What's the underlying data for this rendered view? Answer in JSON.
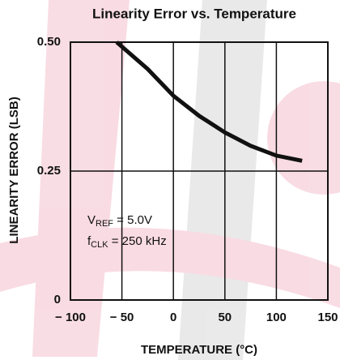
{
  "chart_data": {
    "type": "line",
    "title": "Linearity Error vs. Temperature",
    "x_label": "TEMPERATURE (°C)",
    "y_label": "LINEARITY ERROR (LSB)",
    "x": [
      -55,
      -25,
      0,
      25,
      50,
      75,
      100,
      125
    ],
    "series": [
      {
        "color": "#111111",
        "values": [
          0.5,
          0.448,
          0.396,
          0.357,
          0.325,
          0.299,
          0.28,
          0.27
        ]
      }
    ],
    "xlim": [
      -100,
      150
    ],
    "xticks": [
      {
        "value": -100,
        "label": "− 100"
      },
      {
        "value": -50,
        "label": "− 50"
      },
      0,
      50,
      100,
      150
    ],
    "ylim": [
      0,
      0.5
    ],
    "yticks": [
      0,
      0.25,
      {
        "value": 0.5,
        "label": "0.50"
      }
    ],
    "grid": true,
    "annotations": [
      [
        "V",
        "REF",
        " = 5.0V"
      ],
      [
        "f",
        "CLK",
        " = 250 kHz"
      ]
    ]
  }
}
